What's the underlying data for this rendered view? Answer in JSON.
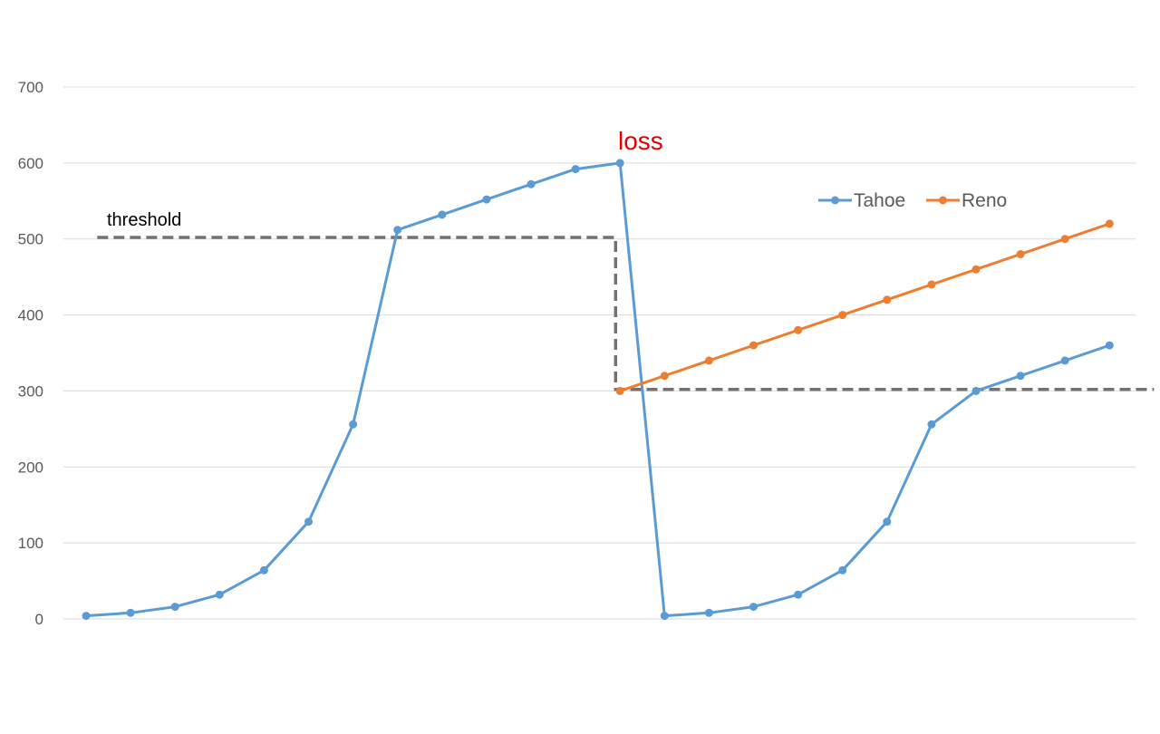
{
  "chart_data": {
    "type": "line",
    "title": "",
    "xlabel": "",
    "ylabel": "",
    "ylim": [
      0,
      700
    ],
    "yticks": [
      0,
      100,
      200,
      300,
      400,
      500,
      600,
      700
    ],
    "grid": true,
    "legend_position": "top-right",
    "series": [
      {
        "name": "Tahoe",
        "color": "#5b9bd5",
        "x": [
          1,
          2,
          3,
          4,
          5,
          6,
          7,
          8,
          9,
          10,
          11,
          12,
          13,
          14,
          15,
          16,
          17,
          18,
          19,
          20,
          21,
          22,
          23,
          24
        ],
        "values": [
          4,
          8,
          16,
          32,
          64,
          128,
          256,
          512,
          532,
          552,
          572,
          592,
          600,
          4,
          8,
          16,
          32,
          64,
          128,
          256,
          300,
          320,
          340,
          360
        ]
      },
      {
        "name": "Reno",
        "color": "#ed7d31",
        "x": [
          13,
          14,
          15,
          16,
          17,
          18,
          19,
          20,
          21,
          22,
          23,
          24
        ],
        "values": [
          300,
          320,
          340,
          360,
          380,
          400,
          420,
          440,
          460,
          480,
          500,
          520
        ]
      }
    ],
    "threshold": {
      "label": "threshold",
      "color": "#767171",
      "points": [
        [
          1.25,
          502
        ],
        [
          12.9,
          502
        ],
        [
          12.9,
          302
        ],
        [
          25,
          302
        ]
      ]
    },
    "annotations": [
      {
        "text": "loss",
        "color": "#e00000",
        "x": 13,
        "y": 600
      }
    ]
  }
}
